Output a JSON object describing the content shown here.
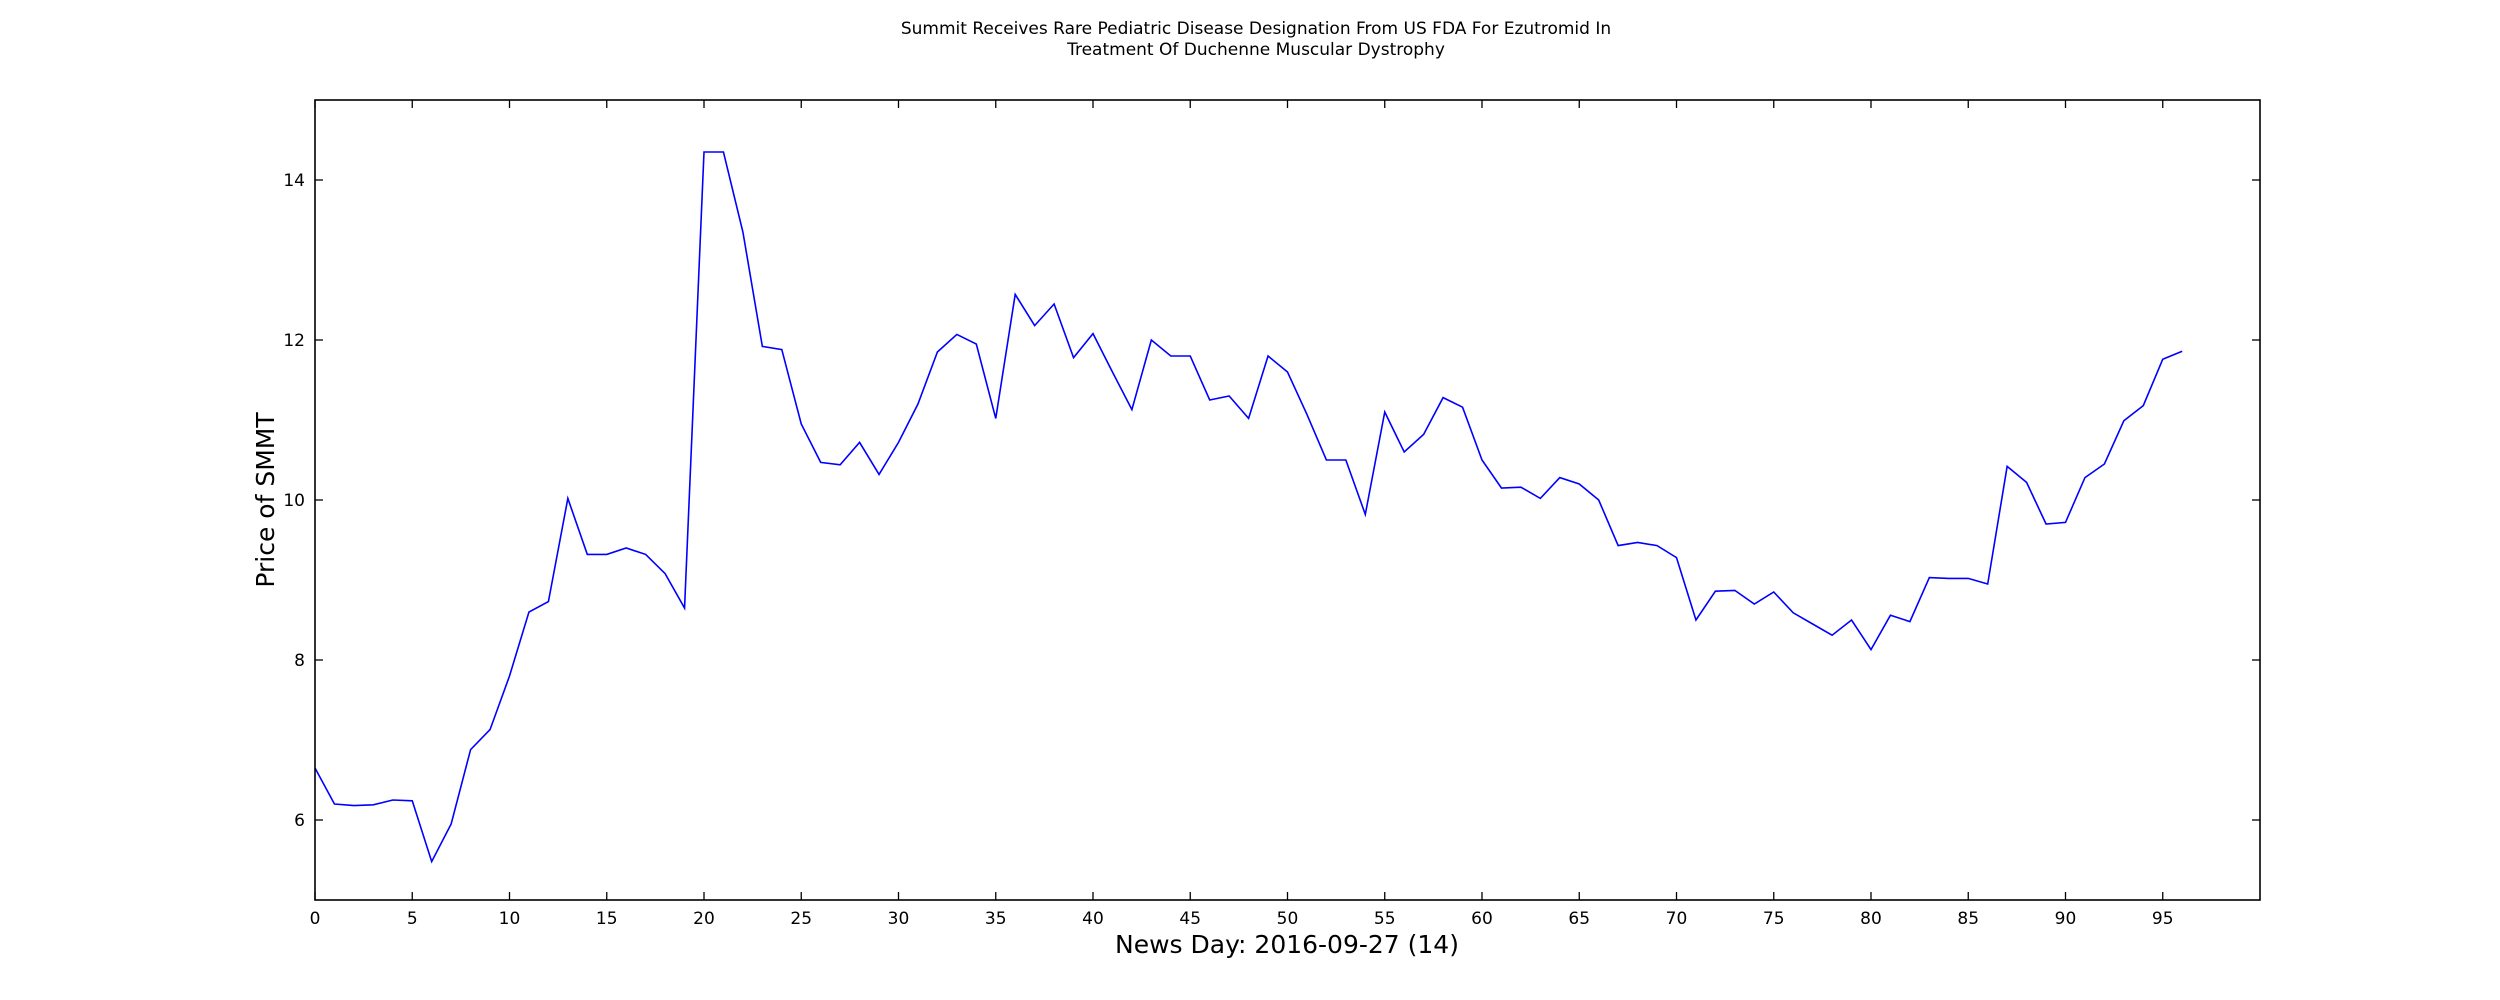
{
  "chart_data": {
    "type": "line",
    "title_lines": [
      "Summit Receives Rare Pediatric Disease Designation From US FDA For Ezutromid In",
      "Treatment Of Duchenne Muscular Dystrophy"
    ],
    "xlabel": "News Day: 2016-09-27 (14)",
    "ylabel": "Price of SMMT",
    "xlim": [
      0,
      100
    ],
    "ylim": [
      5,
      15
    ],
    "xticks": [
      0,
      5,
      10,
      15,
      20,
      25,
      30,
      35,
      40,
      45,
      50,
      55,
      60,
      65,
      70,
      75,
      80,
      85,
      90,
      95
    ],
    "yticks": [
      6,
      8,
      10,
      12,
      14
    ],
    "grid": false,
    "line_color": "#0000ff",
    "series": [
      {
        "x": [
          0,
          1,
          2,
          3,
          4,
          5,
          6,
          7,
          8,
          9,
          10,
          11,
          12,
          13,
          14,
          15,
          16,
          17,
          18,
          19,
          20,
          21,
          22,
          23,
          24,
          25,
          26,
          27,
          28,
          29,
          30,
          31,
          32,
          33,
          34,
          35,
          36,
          37,
          38,
          39,
          40,
          41,
          42,
          43,
          44,
          45,
          46,
          47,
          48,
          49,
          50,
          51,
          52,
          53,
          54,
          55,
          56,
          57,
          58,
          59,
          60,
          61,
          62,
          63,
          64,
          65,
          66,
          67,
          68,
          69,
          70,
          71,
          72,
          73,
          74,
          75,
          76,
          77,
          78,
          79,
          80,
          81,
          82,
          83,
          84,
          85,
          86,
          87,
          88,
          89,
          90,
          91,
          92,
          93,
          94,
          95,
          96
        ],
        "values": [
          6.65,
          6.2,
          6.18,
          6.19,
          6.25,
          6.24,
          5.48,
          5.95,
          6.88,
          7.13,
          7.8,
          8.6,
          8.73,
          10.02,
          9.32,
          9.32,
          9.4,
          9.32,
          9.08,
          8.65,
          14.35,
          14.35,
          13.35,
          11.92,
          11.88,
          10.95,
          10.47,
          10.44,
          10.72,
          10.32,
          10.72,
          11.2,
          11.85,
          12.07,
          11.95,
          11.02,
          12.57,
          12.18,
          12.45,
          11.78,
          12.08,
          11.6,
          11.13,
          12.0,
          11.8,
          11.8,
          11.25,
          11.3,
          11.02,
          11.8,
          11.6,
          11.07,
          10.5,
          10.5,
          9.82,
          11.1,
          10.6,
          10.82,
          11.28,
          11.16,
          10.5,
          10.15,
          10.16,
          10.02,
          10.28,
          10.2,
          10.0,
          9.43,
          9.47,
          9.43,
          9.28,
          8.5,
          8.86,
          8.87,
          8.7,
          8.85,
          8.59,
          8.45,
          8.31,
          8.5,
          8.13,
          8.56,
          8.48,
          9.03,
          9.02,
          9.02,
          8.95,
          10.42,
          10.22,
          9.7,
          9.72,
          10.28,
          10.45,
          10.99,
          11.18,
          11.76,
          11.86
        ]
      }
    ]
  }
}
